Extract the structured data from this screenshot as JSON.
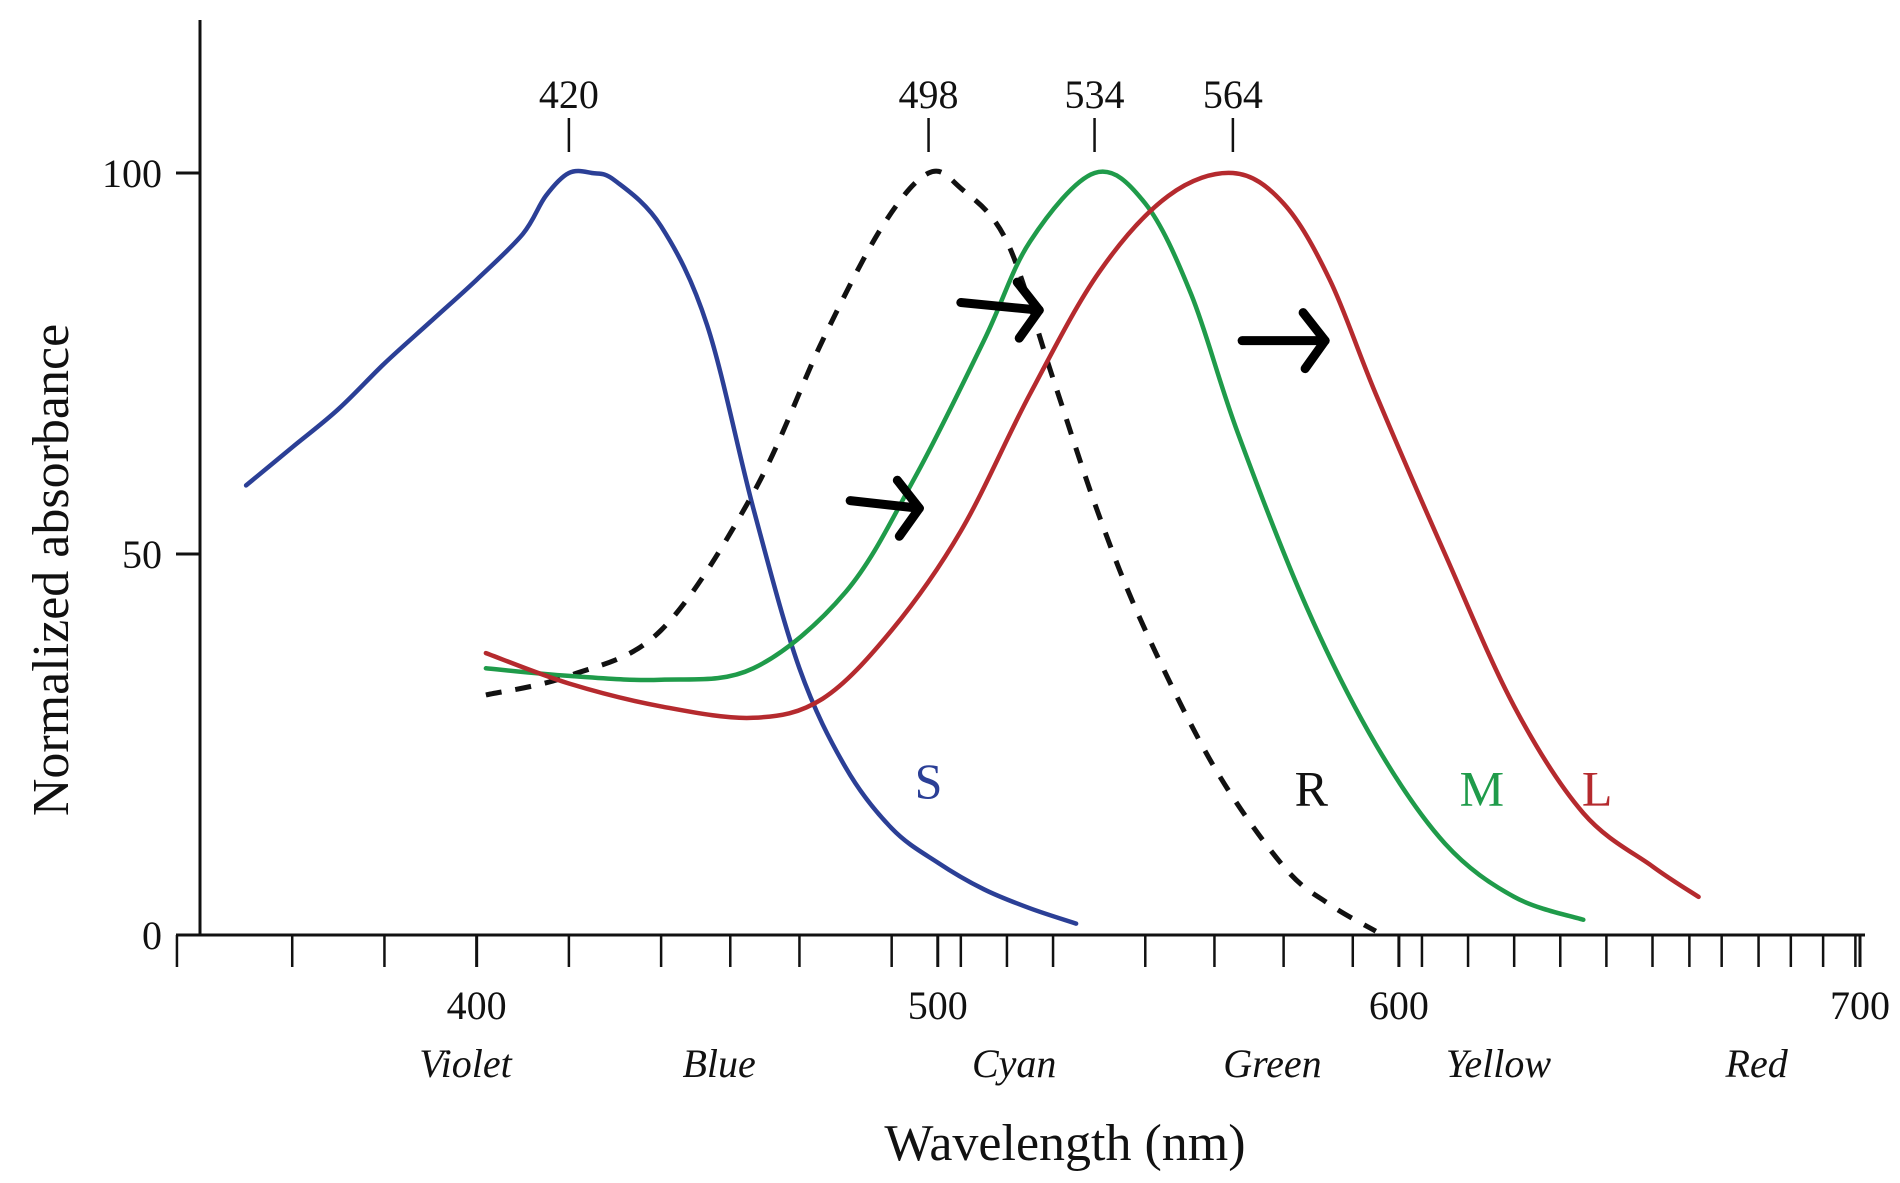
{
  "chart_data": {
    "type": "line",
    "xlabel": "Wavelength (nm)",
    "ylabel": "Normalized absorbance",
    "xlim": [
      340,
      700
    ],
    "ylim": [
      0,
      120
    ],
    "x_ticks": [
      400,
      500,
      600,
      700
    ],
    "y_ticks": [
      0,
      50,
      100
    ],
    "x_ticks_minor": [
      335,
      360,
      380,
      400,
      420,
      440,
      455,
      470,
      490,
      505,
      515,
      525,
      545,
      560,
      575,
      590,
      605,
      615,
      625,
      635,
      645,
      655,
      663,
      670,
      678,
      685,
      692,
      699
    ],
    "peak_markers": [
      {
        "label": "420",
        "x": 420
      },
      {
        "label": "498",
        "x": 498
      },
      {
        "label": "534",
        "x": 534
      },
      {
        "label": "564",
        "x": 564
      }
    ],
    "color_bands": [
      {
        "label": "Violet",
        "x": 403
      },
      {
        "label": "Blue",
        "x": 458
      },
      {
        "label": "Cyan",
        "x": 522
      },
      {
        "label": "Green",
        "x": 578
      },
      {
        "label": "Yellow",
        "x": 627
      },
      {
        "label": "Red",
        "x": 683
      }
    ],
    "series": [
      {
        "name": "S",
        "color": "#2b3f96",
        "dash": false,
        "label_at": [
          498,
          18
        ],
        "x": [
          350,
          360,
          370,
          380,
          390,
          400,
          410,
          415,
          420,
          425,
          430,
          440,
          450,
          460,
          470,
          480,
          490,
          500,
          510,
          520,
          530
        ],
        "y": [
          59,
          64,
          69,
          75,
          80.5,
          86,
          92,
          97,
          100,
          100,
          99,
          93,
          80,
          56,
          35,
          22,
          14,
          9.5,
          6,
          3.5,
          1.5
        ]
      },
      {
        "name": "R",
        "color": "#111111",
        "dash": true,
        "label_at": [
          581,
          17
        ],
        "x": [
          402,
          420,
          440,
          460,
          475,
          488,
          498,
          505,
          515,
          525,
          535,
          545,
          560,
          575,
          585,
          595
        ],
        "y": [
          31.5,
          34,
          40,
          58,
          78,
          93,
          100,
          98,
          91,
          73,
          55,
          40,
          22,
          9,
          4,
          0.5
        ]
      },
      {
        "name": "M",
        "color": "#1f9b4a",
        "dash": false,
        "label_at": [
          618,
          17
        ],
        "x": [
          402,
          420,
          440,
          460,
          480,
          495,
          510,
          520,
          534,
          545,
          555,
          565,
          580,
          595,
          610,
          625,
          640
        ],
        "y": [
          35,
          34,
          33.5,
          35,
          45,
          60,
          78,
          91,
          100,
          96,
          84,
          66,
          43,
          25,
          12,
          5,
          2
        ]
      },
      {
        "name": "L",
        "color": "#b52a2e",
        "dash": false,
        "label_at": [
          643,
          17
        ],
        "x": [
          402,
          420,
          440,
          460,
          475,
          490,
          505,
          520,
          535,
          550,
          564,
          575,
          585,
          595,
          610,
          625,
          640,
          655,
          665
        ],
        "y": [
          37,
          33,
          30,
          28.5,
          31,
          40,
          53,
          71,
          87,
          97,
          100,
          96,
          86,
          71,
          50,
          30,
          16,
          9,
          5
        ]
      }
    ],
    "shift_arrows": [
      {
        "from": [
          481,
          57
        ],
        "to": [
          496,
          56
        ]
      },
      {
        "from": [
          505,
          83
        ],
        "to": [
          522,
          82
        ]
      },
      {
        "from": [
          566,
          78
        ],
        "to": [
          584,
          78
        ]
      }
    ]
  }
}
